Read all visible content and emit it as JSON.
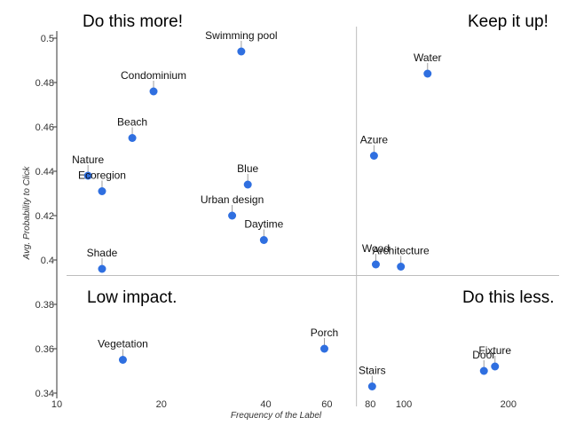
{
  "chart_data": {
    "type": "scatter",
    "xlabel": "Frequency of the Label",
    "ylabel": "Avg. Probability to Click",
    "xscale": "log",
    "xlim": [
      10,
      280
    ],
    "ylim": [
      0.34,
      0.5
    ],
    "x_ticks": [
      10,
      20,
      40,
      60,
      80,
      100,
      200
    ],
    "y_ticks": [
      0.34,
      0.36,
      0.38,
      0.4,
      0.42,
      0.44,
      0.46,
      0.48,
      0.5
    ],
    "y_tick_labels": [
      "0.34",
      "0.36",
      "0.38",
      "0.4",
      "0.42",
      "0.44",
      "0.46",
      "0.48",
      "0.5"
    ],
    "divider": {
      "x": 73,
      "y": 0.393
    },
    "quadrant_labels": {
      "top_left": "Do this more!",
      "top_right": "Keep it up!",
      "bottom_left": "Low impact.",
      "bottom_right": "Do this less."
    },
    "points": [
      {
        "label": "Swimming pool",
        "x": 34,
        "y": 0.494
      },
      {
        "label": "Condominium",
        "x": 19,
        "y": 0.476
      },
      {
        "label": "Beach",
        "x": 16.5,
        "y": 0.455
      },
      {
        "label": "Nature",
        "x": 12.3,
        "y": 0.438
      },
      {
        "label": "Ecoregion",
        "x": 13.5,
        "y": 0.431
      },
      {
        "label": "Blue",
        "x": 35.5,
        "y": 0.434
      },
      {
        "label": "Urban design",
        "x": 32,
        "y": 0.42
      },
      {
        "label": "Daytime",
        "x": 39.5,
        "y": 0.409
      },
      {
        "label": "Shade",
        "x": 13.5,
        "y": 0.396
      },
      {
        "label": "Vegetation",
        "x": 15.5,
        "y": 0.355
      },
      {
        "label": "Porch",
        "x": 59,
        "y": 0.36
      },
      {
        "label": "Water",
        "x": 117,
        "y": 0.484
      },
      {
        "label": "Azure",
        "x": 82,
        "y": 0.447
      },
      {
        "label": "Wood",
        "x": 83,
        "y": 0.398
      },
      {
        "label": "Architecture",
        "x": 98,
        "y": 0.397
      },
      {
        "label": "Stairs",
        "x": 81,
        "y": 0.343
      },
      {
        "label": "Door",
        "x": 170,
        "y": 0.35
      },
      {
        "label": "Fixture",
        "x": 183,
        "y": 0.352
      }
    ],
    "colors": {
      "point": "#2F6FE0",
      "quadrant_text": "#4CAF50",
      "divider": "#BDBDBD",
      "axis": "#333333"
    }
  }
}
